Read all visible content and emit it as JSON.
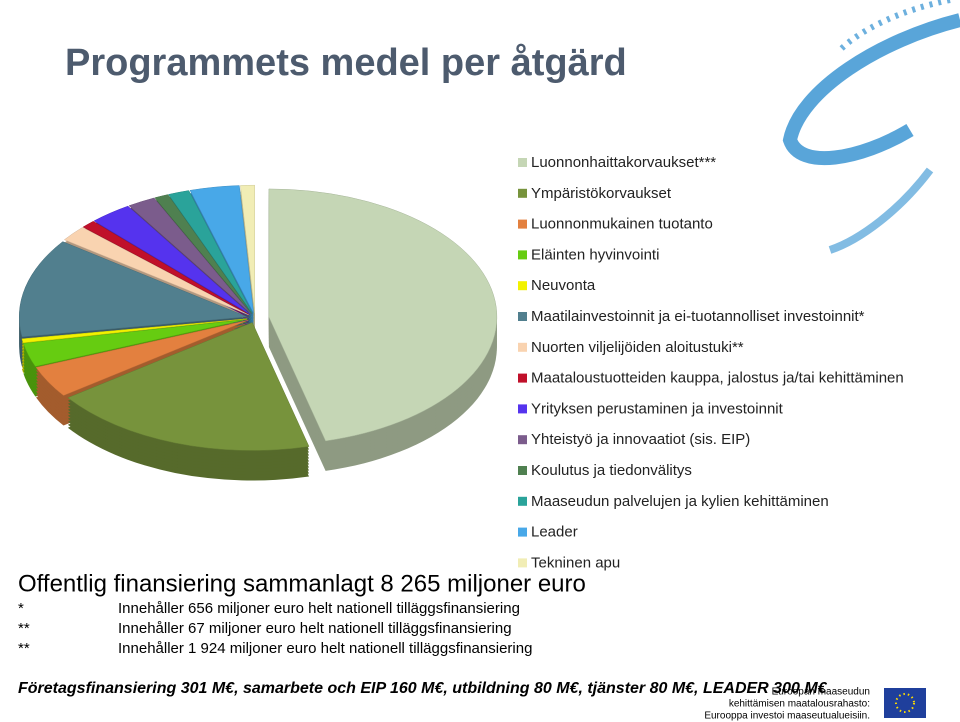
{
  "chart_data": {
    "type": "pie",
    "title": "Programmets medel per åtgärd",
    "categories": [
      "Luonnonhaittakorvaukset***",
      "Ympäristökorvaukset",
      "Luonnonmukainen tuotanto",
      "Eläinten hyvinvointi",
      "Neuvonta",
      "Maatilainvestoinnit ja ei-tuotannolliset investoinnit*",
      "Nuorten viljelijöiden aloitustuki**",
      "Maataloustuotteiden kauppa, jalostus ja/tai kehittäminen",
      "Yrityksen perustaminen ja investoinnit",
      "Yhteistyö ja innovaatiot (sis. EIP)",
      "Koulutus ja tiedonvälitys",
      "Maaseudun palvelujen ja kylien kehittäminen",
      "Leader",
      "Tekninen apu"
    ],
    "values": [
      46,
      19,
      4,
      3,
      0.5,
      12.5,
      2,
      1,
      3,
      2,
      1,
      1.5,
      3.5,
      1
    ],
    "colors": [
      "#c5d6b5",
      "#77933c",
      "#e3803f",
      "#66cc11",
      "#f2f200",
      "#517f8e",
      "#f9d3b0",
      "#c0102a",
      "#5533ee",
      "#7b5c8c",
      "#4f8050",
      "#2aa39a",
      "#48a8e8",
      "#f1edb5"
    ],
    "total_note": "Offentlig finansiering sammanlagt 8 265 miljoner euro",
    "notes": [
      {
        "mark": "*",
        "text": "Innehåller 656 miljoner euro helt nationell tilläggsfinansiering"
      },
      {
        "mark": "**",
        "text": "Innehåller 67 miljoner euro helt nationell tilläggsfinansiering"
      },
      {
        "mark": "**",
        "text": "Innehåller 1 924 miljoner euro helt nationell tilläggsfinansiering"
      }
    ],
    "footer": "Företagsfinansiering 301 M€, samarbete och EIP 160 M€, utbildning 80 M€, tjänster 80 M€, LEADER 300 M€",
    "logo": [
      "Euroopan maaseudun",
      "kehittämisen maatalousrahasto:",
      "Eurooppa investoi maaseutualueisiin."
    ]
  }
}
